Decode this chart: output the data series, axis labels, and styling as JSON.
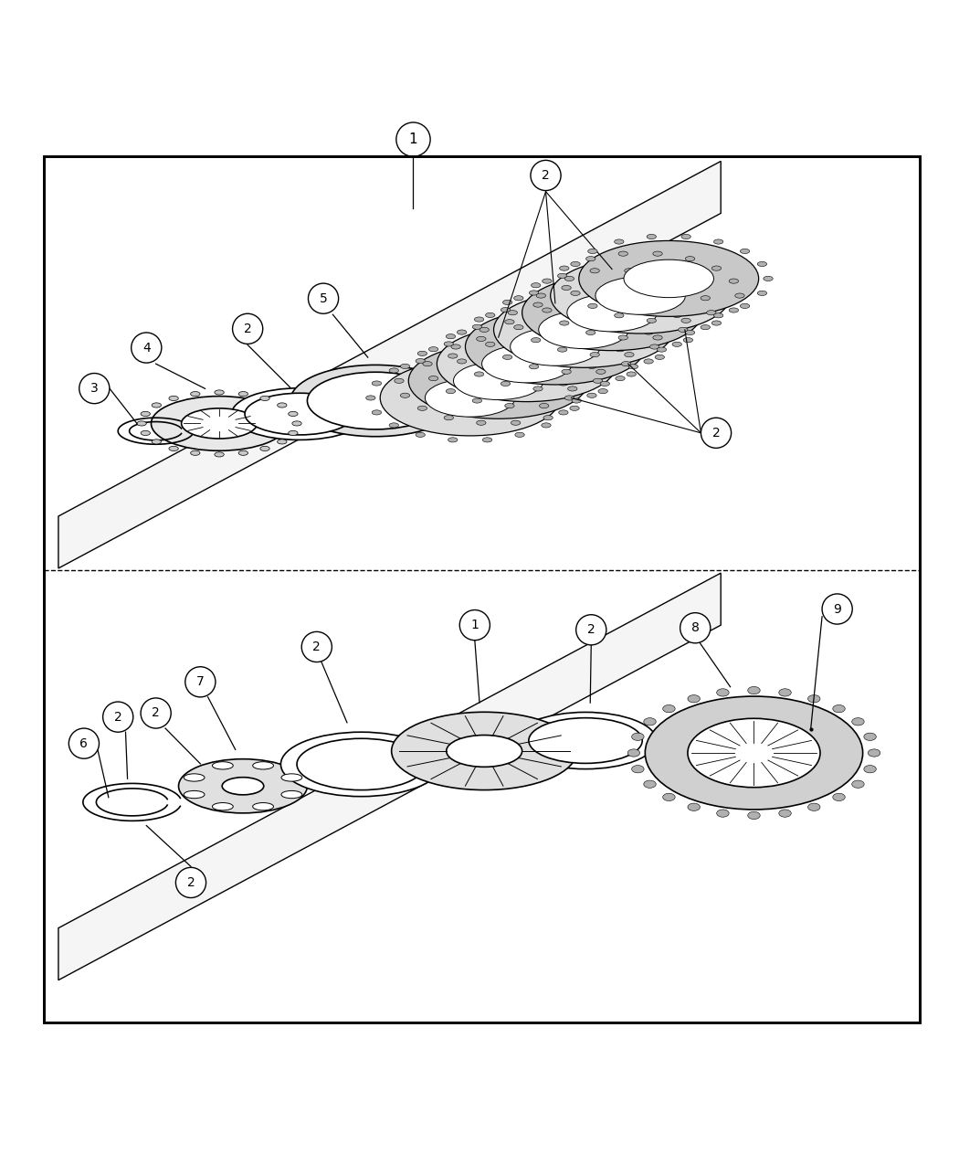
{
  "bg_color": "#ffffff",
  "line_color": "#000000",
  "fig_width": 10.5,
  "fig_height": 12.75
}
